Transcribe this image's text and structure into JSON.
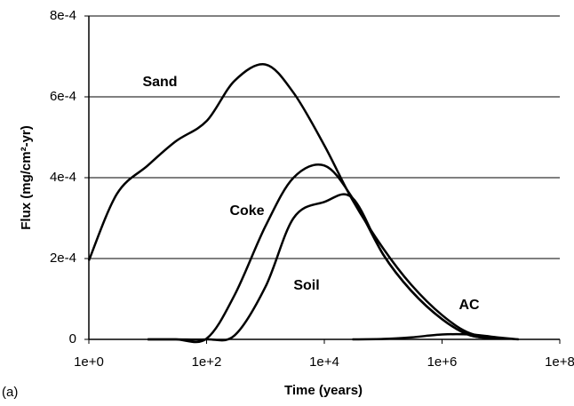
{
  "chart_data": {
    "type": "line",
    "xlabel": "Time (years)",
    "ylabel": "Flux (mg/cm²-yr)",
    "panel_label": "(a)",
    "xscale": "log",
    "x": [
      1,
      3,
      10,
      30,
      100,
      300,
      1000,
      3000,
      10000,
      30000,
      100000,
      300000,
      1000000,
      3000000,
      10000000,
      20000000
    ],
    "series": [
      {
        "name": "Sand",
        "color": "#000000",
        "values": [
          0.000195,
          0.00036,
          0.00043,
          0.00049,
          0.00054,
          0.00064,
          0.00068,
          0.00061,
          0.00048,
          0.000345,
          0.000225,
          0.000135,
          6e-05,
          1.5e-05,
          3e-06,
          null
        ]
      },
      {
        "name": "Coke",
        "color": "#000000",
        "values": [
          null,
          null,
          0,
          0,
          2e-06,
          0.00011,
          0.00028,
          0.0004,
          0.00043,
          0.00035,
          0.00021,
          0.00012,
          5e-05,
          1e-05,
          2e-06,
          null
        ]
      },
      {
        "name": "Soil",
        "color": "#000000",
        "values": [
          null,
          null,
          0,
          0,
          0,
          1e-05,
          0.00013,
          0.0003,
          0.00034,
          0.00035,
          0.00021,
          0.00012,
          5e-05,
          1e-05,
          2e-06,
          null
        ]
      },
      {
        "name": "AC",
        "color": "#000000",
        "values": [
          null,
          null,
          null,
          null,
          null,
          null,
          null,
          null,
          null,
          0,
          1e-06,
          5e-06,
          1.2e-05,
          1.2e-05,
          4e-06,
          0
        ]
      }
    ],
    "xlim": [
      1,
      100000000
    ],
    "xticks": [
      {
        "value": 1,
        "label": "1e+0"
      },
      {
        "value": 100,
        "label": "1e+2"
      },
      {
        "value": 10000,
        "label": "1e+4"
      },
      {
        "value": 1000000,
        "label": "1e+6"
      },
      {
        "value": 100000000,
        "label": "1e+8"
      }
    ],
    "ylim": [
      0,
      0.0008
    ],
    "yticks": [
      0,
      {
        "value": 0.0002,
        "label": "2e-4"
      },
      {
        "value": 0.0004,
        "label": "4e-4"
      },
      {
        "value": 0.0006,
        "label": "6e-4"
      },
      {
        "value": 0.0008,
        "label": "8e-4"
      }
    ],
    "grid": true
  }
}
